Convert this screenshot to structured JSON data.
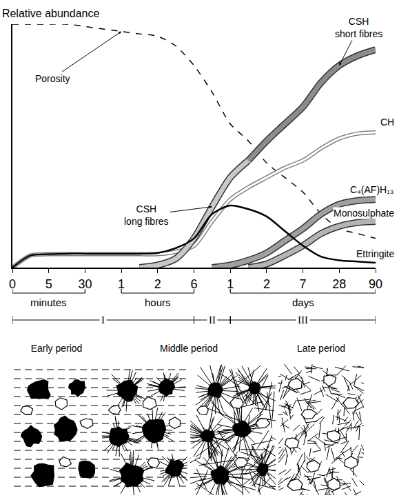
{
  "chart_data": {
    "type": "line",
    "title": "Relative abundance",
    "categories": [
      "0",
      null,
      "5",
      null,
      "30",
      null,
      "1",
      null,
      "2",
      null,
      "6",
      null,
      "1",
      null,
      "2",
      null,
      "7",
      null,
      "28",
      null,
      "90"
    ],
    "ylim": [
      0,
      100
    ],
    "tick_labels": "x",
    "grid": false,
    "series": [
      {
        "name": "Porosity",
        "color": "#000000",
        "line_style": "dashed",
        "values": [
          100,
          100,
          100,
          100,
          99,
          98,
          97,
          96,
          95,
          91,
          83,
          72,
          59,
          52,
          43,
          37,
          31,
          22,
          16,
          14,
          12
        ]
      },
      {
        "name": "CSH short fibres",
        "color": "#8c8c8c",
        "line_style": "band",
        "values": [
          null,
          null,
          null,
          null,
          null,
          null,
          null,
          null,
          null,
          null,
          null,
          null,
          null,
          44,
          52,
          59,
          66,
          76,
          83,
          87,
          89.5
        ]
      },
      {
        "name": "CH",
        "color": "#808080",
        "line_style": "double",
        "values": [
          0,
          5,
          5.5,
          5.5,
          5.5,
          5.5,
          5.5,
          5.5,
          5.5,
          6.5,
          9,
          19,
          28,
          33,
          37,
          41,
          44,
          49,
          53,
          55,
          55.5
        ]
      },
      {
        "name": "CSH long fibres",
        "color": "#c8c8c8",
        "line_style": "band",
        "values": [
          null,
          null,
          null,
          null,
          null,
          null,
          null,
          0,
          1,
          3.7,
          12,
          25,
          37,
          44,
          null,
          null,
          null,
          null,
          null,
          null,
          null
        ]
      },
      {
        "name": "C₄(AF)H₁₃",
        "color": "#a0a0a0",
        "line_style": "band",
        "values": [
          null,
          null,
          null,
          null,
          null,
          null,
          null,
          null,
          null,
          null,
          null,
          0,
          1,
          3,
          6,
          11,
          16,
          22,
          26,
          27.5,
          28
        ]
      },
      {
        "name": "Monosulphate",
        "color": "#b4b4b4",
        "line_style": "band",
        "values": [
          null,
          null,
          null,
          null,
          null,
          null,
          null,
          null,
          null,
          null,
          null,
          null,
          null,
          0,
          1.5,
          5,
          9,
          14,
          17,
          18.5,
          19
        ]
      },
      {
        "name": "Ettringite",
        "color": "#000000",
        "line_style": "solid",
        "values": [
          0,
          5,
          5.5,
          5.7,
          5.7,
          5.7,
          5.7,
          5.7,
          6,
          8,
          12,
          22,
          25.5,
          24,
          21,
          15,
          9,
          4.5,
          3,
          2.5,
          2
        ]
      }
    ],
    "x_units": [
      {
        "label": "minutes",
        "start": 0,
        "end": 4
      },
      {
        "label": "hours",
        "start": 6,
        "end": 10
      },
      {
        "label": "days",
        "start": 12,
        "end": 20
      }
    ],
    "periods": [
      {
        "label": "I",
        "start": 0,
        "end": 10
      },
      {
        "label": "II",
        "start": 10,
        "end": 12
      },
      {
        "label": "III",
        "start": 12,
        "end": 20
      }
    ]
  },
  "sketch": {
    "titles": [
      "Early period",
      "Middle period",
      "Late period"
    ]
  }
}
